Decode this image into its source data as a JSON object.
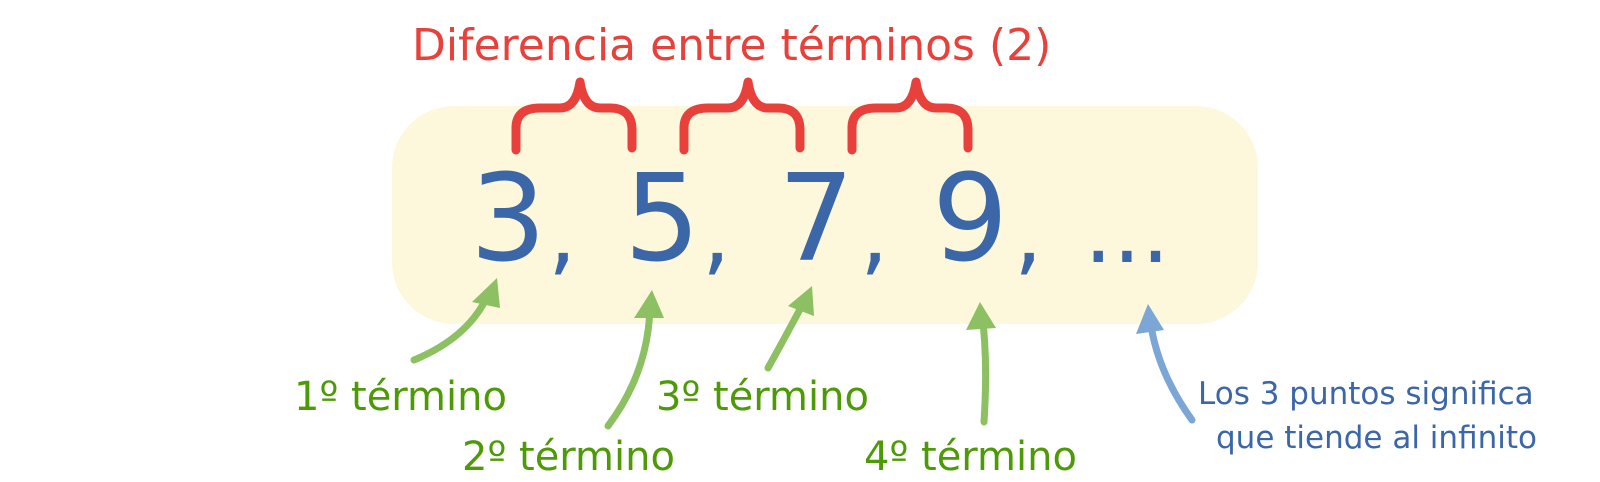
{
  "title": "Diferencia entre términos (2)",
  "sequence": {
    "terms": [
      "3",
      "5",
      "7",
      "9"
    ],
    "separator": ",",
    "ellipsis": "..."
  },
  "labels": {
    "term1": "1º término",
    "term2": "2º término",
    "term3": "3º término",
    "term4": "4º término",
    "ellipsis_line1": "Los 3 puntos significa",
    "ellipsis_line2": "que tiende al infinito"
  },
  "colors": {
    "title": "#e8413b",
    "numbers": "#3b66a8",
    "labels": "#4e9a06",
    "arrows_green": "#8cc063",
    "arrow_blue": "#7ca6d6",
    "panel": "#fdf8dc"
  }
}
